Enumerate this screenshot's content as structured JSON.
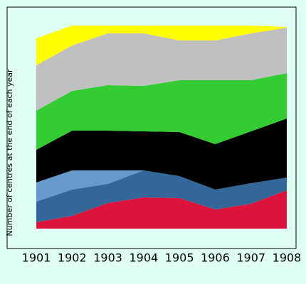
{
  "chart_data": {
    "type": "stacked_area",
    "y_label": "Number of centres at the end of each year",
    "categories": [
      "1901",
      "1902",
      "1903",
      "1904",
      "1905",
      "1906",
      "1907",
      "1908"
    ],
    "ylim": [
      0,
      290
    ],
    "series": [
      {
        "color": "#dc143c",
        "values": [
          9,
          18,
          36,
          44,
          43,
          27,
          35,
          54
        ]
      },
      {
        "color": "#336699",
        "values": [
          29,
          37,
          27,
          38,
          31,
          28,
          29,
          18
        ]
      },
      {
        "color": "#6699cc",
        "values": [
          27,
          27,
          19,
          0,
          0,
          0,
          0,
          0
        ]
      },
      {
        "color": "#000000",
        "values": [
          46,
          56,
          56,
          55,
          62,
          64,
          73,
          83
        ]
      },
      {
        "color": "#33cc33",
        "values": [
          55,
          56,
          64,
          64,
          73,
          90,
          72,
          64
        ]
      },
      {
        "color": "#c0c0c0",
        "values": [
          64,
          64,
          73,
          74,
          56,
          56,
          66,
          64
        ]
      },
      {
        "color": "#ffff00",
        "values": [
          38,
          28,
          11,
          11,
          21,
          21,
          11,
          1
        ]
      }
    ]
  }
}
